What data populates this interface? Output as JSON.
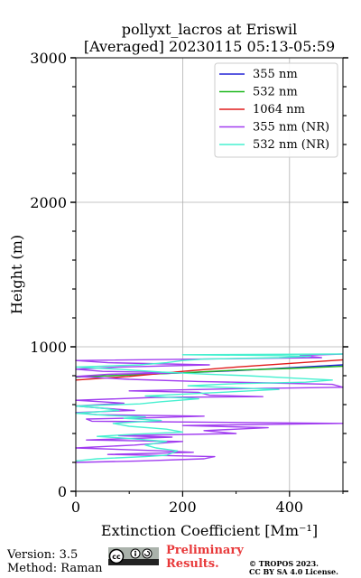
{
  "title_line1": "pollyxt_lacros at Eriswil",
  "title_line2": "[Averaged] 20230115 05:13-05:59",
  "footer": {
    "version": "Version: 3.5",
    "method": "Method: Raman",
    "prelim_line1": "Preliminary",
    "prelim_line2": "Results.",
    "copyright_line1": "© TROPOS 2023.",
    "copyright_line2": "CC BY SA 4.0 License.",
    "license_badge": "cc-by-sa-icon"
  },
  "chart_data": {
    "type": "line",
    "xlabel": "Extinction Coefficient [Mm⁻¹]",
    "ylabel": "Height (m)",
    "xlim": [
      0,
      500
    ],
    "ylim": [
      0,
      3000
    ],
    "xticks": [
      0,
      200,
      400
    ],
    "yticks": [
      0,
      1000,
      2000,
      3000
    ],
    "grid": true,
    "legend_position": "top-right",
    "series": [
      {
        "name": "355 nm",
        "color": "#2323d6",
        "points": [
          [
            0,
            790
          ],
          [
            100,
            805
          ],
          [
            200,
            820
          ],
          [
            300,
            835
          ],
          [
            400,
            855
          ],
          [
            500,
            875
          ]
        ]
      },
      {
        "name": "532 nm",
        "color": "#1fb81f",
        "points": [
          [
            0,
            790
          ],
          [
            100,
            805
          ],
          [
            200,
            820
          ],
          [
            300,
            838
          ],
          [
            400,
            850
          ],
          [
            500,
            865
          ]
        ]
      },
      {
        "name": "1064 nm",
        "color": "#e01b1b",
        "points": [
          [
            0,
            770
          ],
          [
            100,
            795
          ],
          [
            200,
            830
          ],
          [
            300,
            860
          ],
          [
            400,
            885
          ],
          [
            500,
            910
          ]
        ]
      },
      {
        "name": "355 nm (NR)",
        "color": "#a13ef0",
        "points": [
          [
            0,
            200
          ],
          [
            120,
            210
          ],
          [
            240,
            225
          ],
          [
            260,
            240
          ],
          [
            60,
            255
          ],
          [
            220,
            270
          ],
          [
            160,
            280
          ],
          [
            0,
            300
          ],
          [
            110,
            320
          ],
          [
            200,
            345
          ],
          [
            20,
            355
          ],
          [
            180,
            375
          ],
          [
            80,
            385
          ],
          [
            300,
            400
          ],
          [
            240,
            420
          ],
          [
            360,
            440
          ],
          [
            200,
            455
          ],
          [
            500,
            470
          ],
          [
            30,
            485
          ],
          [
            20,
            500
          ],
          [
            150,
            510
          ],
          [
            240,
            520
          ],
          [
            40,
            530
          ],
          [
            0,
            545
          ],
          [
            110,
            560
          ],
          [
            50,
            575
          ],
          [
            0,
            590
          ],
          [
            90,
            610
          ],
          [
            0,
            630
          ],
          [
            150,
            650
          ],
          [
            350,
            655
          ],
          [
            250,
            665
          ],
          [
            230,
            685
          ],
          [
            100,
            695
          ],
          [
            300,
            710
          ],
          [
            500,
            720
          ],
          [
            480,
            740
          ],
          [
            360,
            750
          ],
          [
            230,
            760
          ],
          [
            100,
            775
          ],
          [
            0,
            795
          ],
          [
            60,
            810
          ],
          [
            200,
            820
          ],
          [
            50,
            830
          ],
          [
            0,
            845
          ],
          [
            80,
            860
          ],
          [
            250,
            875
          ],
          [
            60,
            890
          ],
          [
            0,
            905
          ],
          [
            460,
            925
          ],
          [
            420,
            940
          ],
          [
            500,
            950
          ]
        ]
      },
      {
        "name": "532 nm (NR)",
        "color": "#47f0d0",
        "points": [
          [
            0,
            210
          ],
          [
            40,
            225
          ],
          [
            130,
            240
          ],
          [
            170,
            250
          ],
          [
            180,
            265
          ],
          [
            190,
            280
          ],
          [
            150,
            300
          ],
          [
            130,
            320
          ],
          [
            170,
            345
          ],
          [
            100,
            365
          ],
          [
            40,
            380
          ],
          [
            110,
            395
          ],
          [
            200,
            410
          ],
          [
            170,
            430
          ],
          [
            100,
            450
          ],
          [
            70,
            470
          ],
          [
            160,
            490
          ],
          [
            90,
            505
          ],
          [
            130,
            515
          ],
          [
            60,
            525
          ],
          [
            0,
            540
          ],
          [
            80,
            560
          ],
          [
            50,
            575
          ],
          [
            0,
            590
          ],
          [
            120,
            605
          ],
          [
            160,
            620
          ],
          [
            230,
            640
          ],
          [
            130,
            660
          ],
          [
            300,
            690
          ],
          [
            380,
            705
          ],
          [
            270,
            720
          ],
          [
            210,
            730
          ],
          [
            300,
            745
          ],
          [
            430,
            755
          ],
          [
            480,
            770
          ],
          [
            400,
            785
          ],
          [
            320,
            800
          ],
          [
            250,
            810
          ],
          [
            160,
            825
          ],
          [
            80,
            845
          ],
          [
            0,
            860
          ],
          [
            120,
            875
          ],
          [
            170,
            890
          ],
          [
            200,
            905
          ],
          [
            240,
            915
          ],
          [
            380,
            925
          ],
          [
            440,
            935
          ],
          [
            360,
            940
          ],
          [
            200,
            945
          ],
          [
            500,
            950
          ]
        ]
      }
    ]
  }
}
